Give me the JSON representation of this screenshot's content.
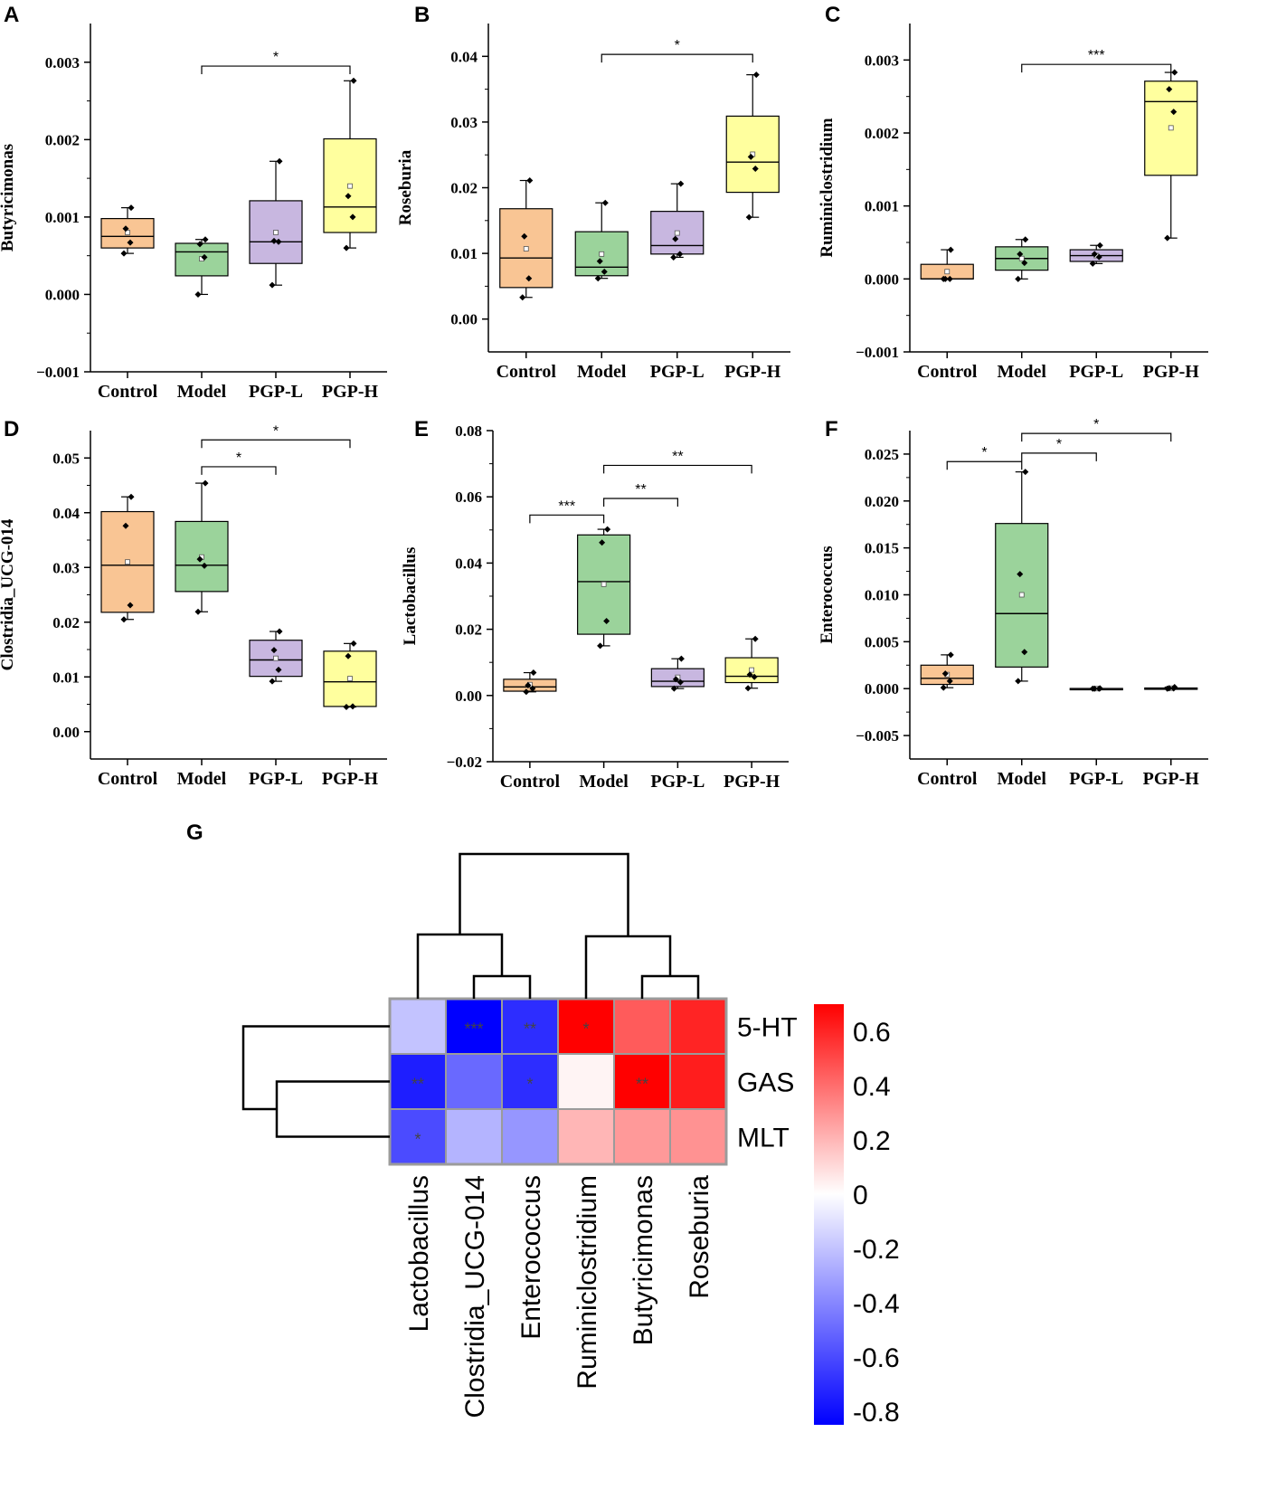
{
  "figure_panels": [
    "A",
    "B",
    "C",
    "D",
    "E",
    "F",
    "G"
  ],
  "colors": {
    "Control": "#f9c594",
    "Model": "#9bd39b",
    "PGP-L": "#c8b7e0",
    "PGP-H": "#ffff9e",
    "axis": "#000000",
    "heat_grid": "#9b9b9b"
  },
  "chart_data": [
    {
      "panel": "A",
      "type": "box",
      "ylabel": "Butyricimonas",
      "categories": [
        "Control",
        "Model",
        "PGP-L",
        "PGP-H"
      ],
      "ylim": [
        -0.001,
        0.0035
      ],
      "yticks": [
        -0.001,
        0.0,
        0.001,
        0.002,
        0.003
      ],
      "ytick_labels": [
        "−0.001",
        "0.000",
        "0.001",
        "0.002",
        "0.003"
      ],
      "series": [
        {
          "name": "Control",
          "q1": 0.0006,
          "median": 0.00075,
          "q3": 0.00098,
          "whisker_low": 0.00053,
          "whisker_high": 0.00112,
          "mean": 0.0008,
          "points": [
            0.00053,
            0.00067,
            0.00085,
            0.00112
          ]
        },
        {
          "name": "Model",
          "q1": 0.00024,
          "median": 0.00055,
          "q3": 0.00066,
          "whisker_low": 0.0,
          "whisker_high": 0.00071,
          "mean": 0.00046,
          "points": [
            0.0,
            0.00048,
            0.00065,
            0.00071
          ]
        },
        {
          "name": "PGP-L",
          "q1": 0.0004,
          "median": 0.00068,
          "q3": 0.00121,
          "whisker_low": 0.00012,
          "whisker_high": 0.00172,
          "mean": 0.0008,
          "points": [
            0.00012,
            0.00068,
            0.00069,
            0.00172
          ]
        },
        {
          "name": "PGP-H",
          "q1": 0.0008,
          "median": 0.00113,
          "q3": 0.00201,
          "whisker_low": 0.0006,
          "whisker_high": 0.00276,
          "mean": 0.0014,
          "points": [
            0.0006,
            0.001,
            0.00127,
            0.00276
          ]
        }
      ],
      "significance": [
        {
          "from": "Model",
          "to": "PGP-H",
          "y": 0.00295,
          "label": "*"
        }
      ]
    },
    {
      "panel": "B",
      "type": "box",
      "ylabel": "Roseburia",
      "categories": [
        "Control",
        "Model",
        "PGP-L",
        "PGP-H"
      ],
      "ylim": [
        -0.005,
        0.045
      ],
      "yticks": [
        0.0,
        0.01,
        0.02,
        0.03,
        0.04
      ],
      "ytick_labels": [
        "0.00",
        "0.01",
        "0.02",
        "0.03",
        "0.04"
      ],
      "series": [
        {
          "name": "Control",
          "q1": 0.0048,
          "median": 0.0093,
          "q3": 0.0168,
          "whisker_low": 0.0033,
          "whisker_high": 0.0211,
          "mean": 0.0107,
          "points": [
            0.0033,
            0.0062,
            0.0126,
            0.0211
          ]
        },
        {
          "name": "Model",
          "q1": 0.0066,
          "median": 0.0079,
          "q3": 0.0133,
          "whisker_low": 0.0062,
          "whisker_high": 0.0177,
          "mean": 0.0099,
          "points": [
            0.0062,
            0.0072,
            0.0088,
            0.0177
          ]
        },
        {
          "name": "PGP-L",
          "q1": 0.0099,
          "median": 0.0112,
          "q3": 0.0164,
          "whisker_low": 0.0094,
          "whisker_high": 0.0206,
          "mean": 0.0131,
          "points": [
            0.0094,
            0.0099,
            0.0122,
            0.0206
          ]
        },
        {
          "name": "PGP-H",
          "q1": 0.0193,
          "median": 0.0239,
          "q3": 0.0309,
          "whisker_low": 0.0155,
          "whisker_high": 0.0372,
          "mean": 0.0251,
          "points": [
            0.0155,
            0.0229,
            0.0247,
            0.0372
          ]
        }
      ],
      "significance": [
        {
          "from": "Model",
          "to": "PGP-H",
          "y": 0.0403,
          "label": "*"
        }
      ]
    },
    {
      "panel": "C",
      "type": "box",
      "ylabel": "Ruminiclostridium",
      "categories": [
        "Control",
        "Model",
        "PGP-L",
        "PGP-H"
      ],
      "ylim": [
        -0.001,
        0.0035
      ],
      "yticks": [
        -0.001,
        0.0,
        0.001,
        0.002,
        0.003
      ],
      "ytick_labels": [
        "−0.001",
        "0.000",
        "0.001",
        "0.002",
        "0.003"
      ],
      "series": [
        {
          "name": "Control",
          "q1": 0.0,
          "median": 0.0,
          "q3": 0.0002,
          "whisker_low": 0.0,
          "whisker_high": 0.0004,
          "mean": 0.0001,
          "points": [
            0.0,
            0.0,
            0.0,
            0.0004
          ]
        },
        {
          "name": "Model",
          "q1": 0.00012,
          "median": 0.00028,
          "q3": 0.00044,
          "whisker_low": 0.0,
          "whisker_high": 0.00054,
          "mean": 0.00028,
          "points": [
            0.0,
            0.00022,
            0.00034,
            0.00054
          ]
        },
        {
          "name": "PGP-L",
          "q1": 0.00024,
          "median": 0.00032,
          "q3": 0.0004,
          "whisker_low": 0.00021,
          "whisker_high": 0.00046,
          "mean": 0.00032,
          "points": [
            0.00021,
            0.0003,
            0.00034,
            0.00046
          ]
        },
        {
          "name": "PGP-H",
          "q1": 0.00142,
          "median": 0.00243,
          "q3": 0.00271,
          "whisker_low": 0.00056,
          "whisker_high": 0.00283,
          "mean": 0.00207,
          "points": [
            0.00056,
            0.00229,
            0.0026,
            0.00283
          ]
        }
      ],
      "significance": [
        {
          "from": "Model",
          "to": "PGP-H",
          "y": 0.00294,
          "label": "***"
        }
      ]
    },
    {
      "panel": "D",
      "type": "box",
      "ylabel": "Clostridia_UCG-014",
      "categories": [
        "Control",
        "Model",
        "PGP-L",
        "PGP-H"
      ],
      "ylim": [
        -0.005,
        0.055
      ],
      "yticks": [
        0.0,
        0.01,
        0.02,
        0.03,
        0.04,
        0.05
      ],
      "ytick_labels": [
        "0.00",
        "0.01",
        "0.02",
        "0.03",
        "0.04",
        "0.05"
      ],
      "series": [
        {
          "name": "Control",
          "q1": 0.0218,
          "median": 0.0304,
          "q3": 0.0402,
          "whisker_low": 0.0205,
          "whisker_high": 0.0429,
          "mean": 0.031,
          "points": [
            0.0205,
            0.0231,
            0.0376,
            0.0429
          ]
        },
        {
          "name": "Model",
          "q1": 0.0256,
          "median": 0.0304,
          "q3": 0.0384,
          "whisker_low": 0.0219,
          "whisker_high": 0.0454,
          "mean": 0.0319,
          "points": [
            0.0219,
            0.0303,
            0.0315,
            0.0454
          ]
        },
        {
          "name": "PGP-L",
          "q1": 0.0101,
          "median": 0.0131,
          "q3": 0.0167,
          "whisker_low": 0.0092,
          "whisker_high": 0.0183,
          "mean": 0.0134,
          "points": [
            0.0092,
            0.0113,
            0.0149,
            0.0183
          ]
        },
        {
          "name": "PGP-H",
          "q1": 0.0046,
          "median": 0.0091,
          "q3": 0.0147,
          "whisker_low": 0.0045,
          "whisker_high": 0.0161,
          "mean": 0.0097,
          "points": [
            0.0045,
            0.0046,
            0.0138,
            0.0161
          ]
        }
      ],
      "significance": [
        {
          "from": "Model",
          "to": "PGP-L",
          "y": 0.0484,
          "label": "*"
        },
        {
          "from": "Model",
          "to": "PGP-H",
          "y": 0.0533,
          "label": "*"
        }
      ]
    },
    {
      "panel": "E",
      "type": "box",
      "ylabel": "Lactobacillus",
      "categories": [
        "Control",
        "Model",
        "PGP-L",
        "PGP-H"
      ],
      "ylim": [
        -0.02,
        0.08
      ],
      "yticks": [
        -0.02,
        0.0,
        0.02,
        0.04,
        0.06,
        0.08
      ],
      "ytick_labels": [
        "−0.02",
        "0.00",
        "0.02",
        "0.04",
        "0.06",
        "0.08"
      ],
      "series": [
        {
          "name": "Control",
          "q1": 0.0013,
          "median": 0.0026,
          "q3": 0.0049,
          "whisker_low": 0.0011,
          "whisker_high": 0.0069,
          "mean": 0.0033,
          "points": [
            0.0011,
            0.0021,
            0.0031,
            0.0069
          ]
        },
        {
          "name": "Model",
          "q1": 0.0185,
          "median": 0.0344,
          "q3": 0.0485,
          "whisker_low": 0.015,
          "whisker_high": 0.0502,
          "mean": 0.0336,
          "points": [
            0.015,
            0.0225,
            0.0462,
            0.0502
          ]
        },
        {
          "name": "PGP-L",
          "q1": 0.0027,
          "median": 0.0043,
          "q3": 0.0081,
          "whisker_low": 0.0021,
          "whisker_high": 0.0111,
          "mean": 0.0055,
          "points": [
            0.0021,
            0.004,
            0.0049,
            0.0111
          ]
        },
        {
          "name": "PGP-H",
          "q1": 0.0039,
          "median": 0.0058,
          "q3": 0.0114,
          "whisker_low": 0.0022,
          "whisker_high": 0.0171,
          "mean": 0.0077,
          "points": [
            0.0022,
            0.0056,
            0.0063,
            0.0171
          ]
        }
      ],
      "significance": [
        {
          "from": "Control",
          "to": "Model",
          "y": 0.0545,
          "label": "***"
        },
        {
          "from": "Model",
          "to": "PGP-L",
          "y": 0.0595,
          "label": "**"
        },
        {
          "from": "Model",
          "to": "PGP-H",
          "y": 0.0695,
          "label": "**"
        }
      ]
    },
    {
      "panel": "F",
      "type": "box",
      "ylabel": "Enterococcus",
      "categories": [
        "Control",
        "Model",
        "PGP-L",
        "PGP-H"
      ],
      "ylim": [
        -0.0075,
        0.0275
      ],
      "yticks": [
        -0.005,
        0.0,
        0.005,
        0.01,
        0.015,
        0.02,
        0.025
      ],
      "ytick_labels": [
        "−0.005",
        "0.000",
        "0.005",
        "0.010",
        "0.015",
        "0.020",
        "0.025"
      ],
      "series": [
        {
          "name": "Control",
          "q1": 0.00045,
          "median": 0.0011,
          "q3": 0.0025,
          "whisker_low": 0.0001,
          "whisker_high": 0.0036,
          "mean": 0.0015,
          "points": [
            0.0001,
            0.0008,
            0.0016,
            0.0036
          ]
        },
        {
          "name": "Model",
          "q1": 0.0023,
          "median": 0.008,
          "q3": 0.0176,
          "whisker_low": 0.0008,
          "whisker_high": 0.0231,
          "mean": 0.01,
          "points": [
            0.0008,
            0.0039,
            0.0122,
            0.0231
          ]
        },
        {
          "name": "PGP-L",
          "q1": 0.0,
          "median": 0.0,
          "q3": 2e-05,
          "whisker_low": 0.0,
          "whisker_high": 3e-05,
          "mean": 0.0,
          "points": [
            0.0,
            0.0,
            0.0,
            3e-05
          ]
        },
        {
          "name": "PGP-H",
          "q1": 0.0,
          "median": 3e-05,
          "q3": 7e-05,
          "whisker_low": 0.0,
          "whisker_high": 0.00016,
          "mean": 5e-05,
          "points": [
            0.0,
            2e-05,
            4e-05,
            0.00016
          ]
        }
      ],
      "significance": [
        {
          "from": "Control",
          "to": "Model",
          "y": 0.0242,
          "label": "*"
        },
        {
          "from": "Model",
          "to": "PGP-L",
          "y": 0.0251,
          "label": "*"
        },
        {
          "from": "Model",
          "to": "PGP-H",
          "y": 0.0272,
          "label": "*"
        }
      ]
    },
    {
      "panel": "G",
      "type": "heatmap",
      "columns": [
        "Lactobacillus",
        "Clostridia_UCG-014",
        "Enterococcus",
        "Ruminiclostridium",
        "Butyricimonas",
        "Roseburia"
      ],
      "rows": [
        "5-HT",
        "GAS",
        "MLT"
      ],
      "values": [
        [
          -0.2,
          -0.85,
          -0.7,
          0.75,
          0.45,
          0.6
        ],
        [
          -0.75,
          -0.5,
          -0.7,
          0.03,
          0.8,
          0.62
        ],
        [
          -0.6,
          -0.25,
          -0.35,
          0.2,
          0.28,
          0.3
        ]
      ],
      "stars": [
        [
          "",
          "***",
          "**",
          "*",
          "",
          ""
        ],
        [
          "**",
          "",
          "*",
          "",
          "**",
          ""
        ],
        [
          "*",
          "",
          "",
          "",
          "",
          ""
        ]
      ],
      "color_range": [
        -0.85,
        0.7
      ],
      "colorbar_ticks": [
        0.6,
        0.4,
        0.2,
        0,
        -0.2,
        -0.4,
        -0.6,
        -0.8
      ],
      "colorbar_labels": [
        "0.6",
        "0.4",
        "0.2",
        "0",
        "-0.2",
        "-0.4",
        "-0.6",
        "-0.8"
      ],
      "column_dendrogram": "((Lactobacillus,(Clostridia_UCG-014,Enterococcus)),(Ruminiclostridium,(Butyricimonas,Roseburia)))",
      "row_dendrogram": "(5-HT,(GAS,MLT))"
    }
  ]
}
